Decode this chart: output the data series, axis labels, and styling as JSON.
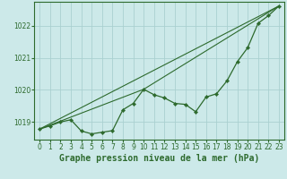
{
  "title": "Graphe pression niveau de la mer (hPa)",
  "background_color": "#cce9e9",
  "grid_color": "#aad0d0",
  "line_color": "#2d6a2d",
  "xlim": [
    -0.5,
    23.5
  ],
  "ylim": [
    1018.45,
    1022.75
  ],
  "yticks": [
    1019,
    1020,
    1021,
    1022
  ],
  "xticks": [
    0,
    1,
    2,
    3,
    4,
    5,
    6,
    7,
    8,
    9,
    10,
    11,
    12,
    13,
    14,
    15,
    16,
    17,
    18,
    19,
    20,
    21,
    22,
    23
  ],
  "main_series": [
    1018.78,
    1018.88,
    1019.0,
    1019.07,
    1018.72,
    1018.63,
    1018.68,
    1018.73,
    1019.38,
    1019.58,
    1020.02,
    1019.85,
    1019.75,
    1019.58,
    1019.55,
    1019.32,
    1019.78,
    1019.88,
    1020.28,
    1020.88,
    1021.32,
    1022.08,
    1022.32,
    1022.62
  ],
  "straight_line1": [
    [
      0,
      23
    ],
    [
      1018.78,
      1022.62
    ]
  ],
  "straight_line2": [
    [
      0,
      10,
      23
    ],
    [
      1018.78,
      1020.02,
      1022.62
    ]
  ],
  "xlabel_fontsize": 7,
  "tick_fontsize": 5.5
}
